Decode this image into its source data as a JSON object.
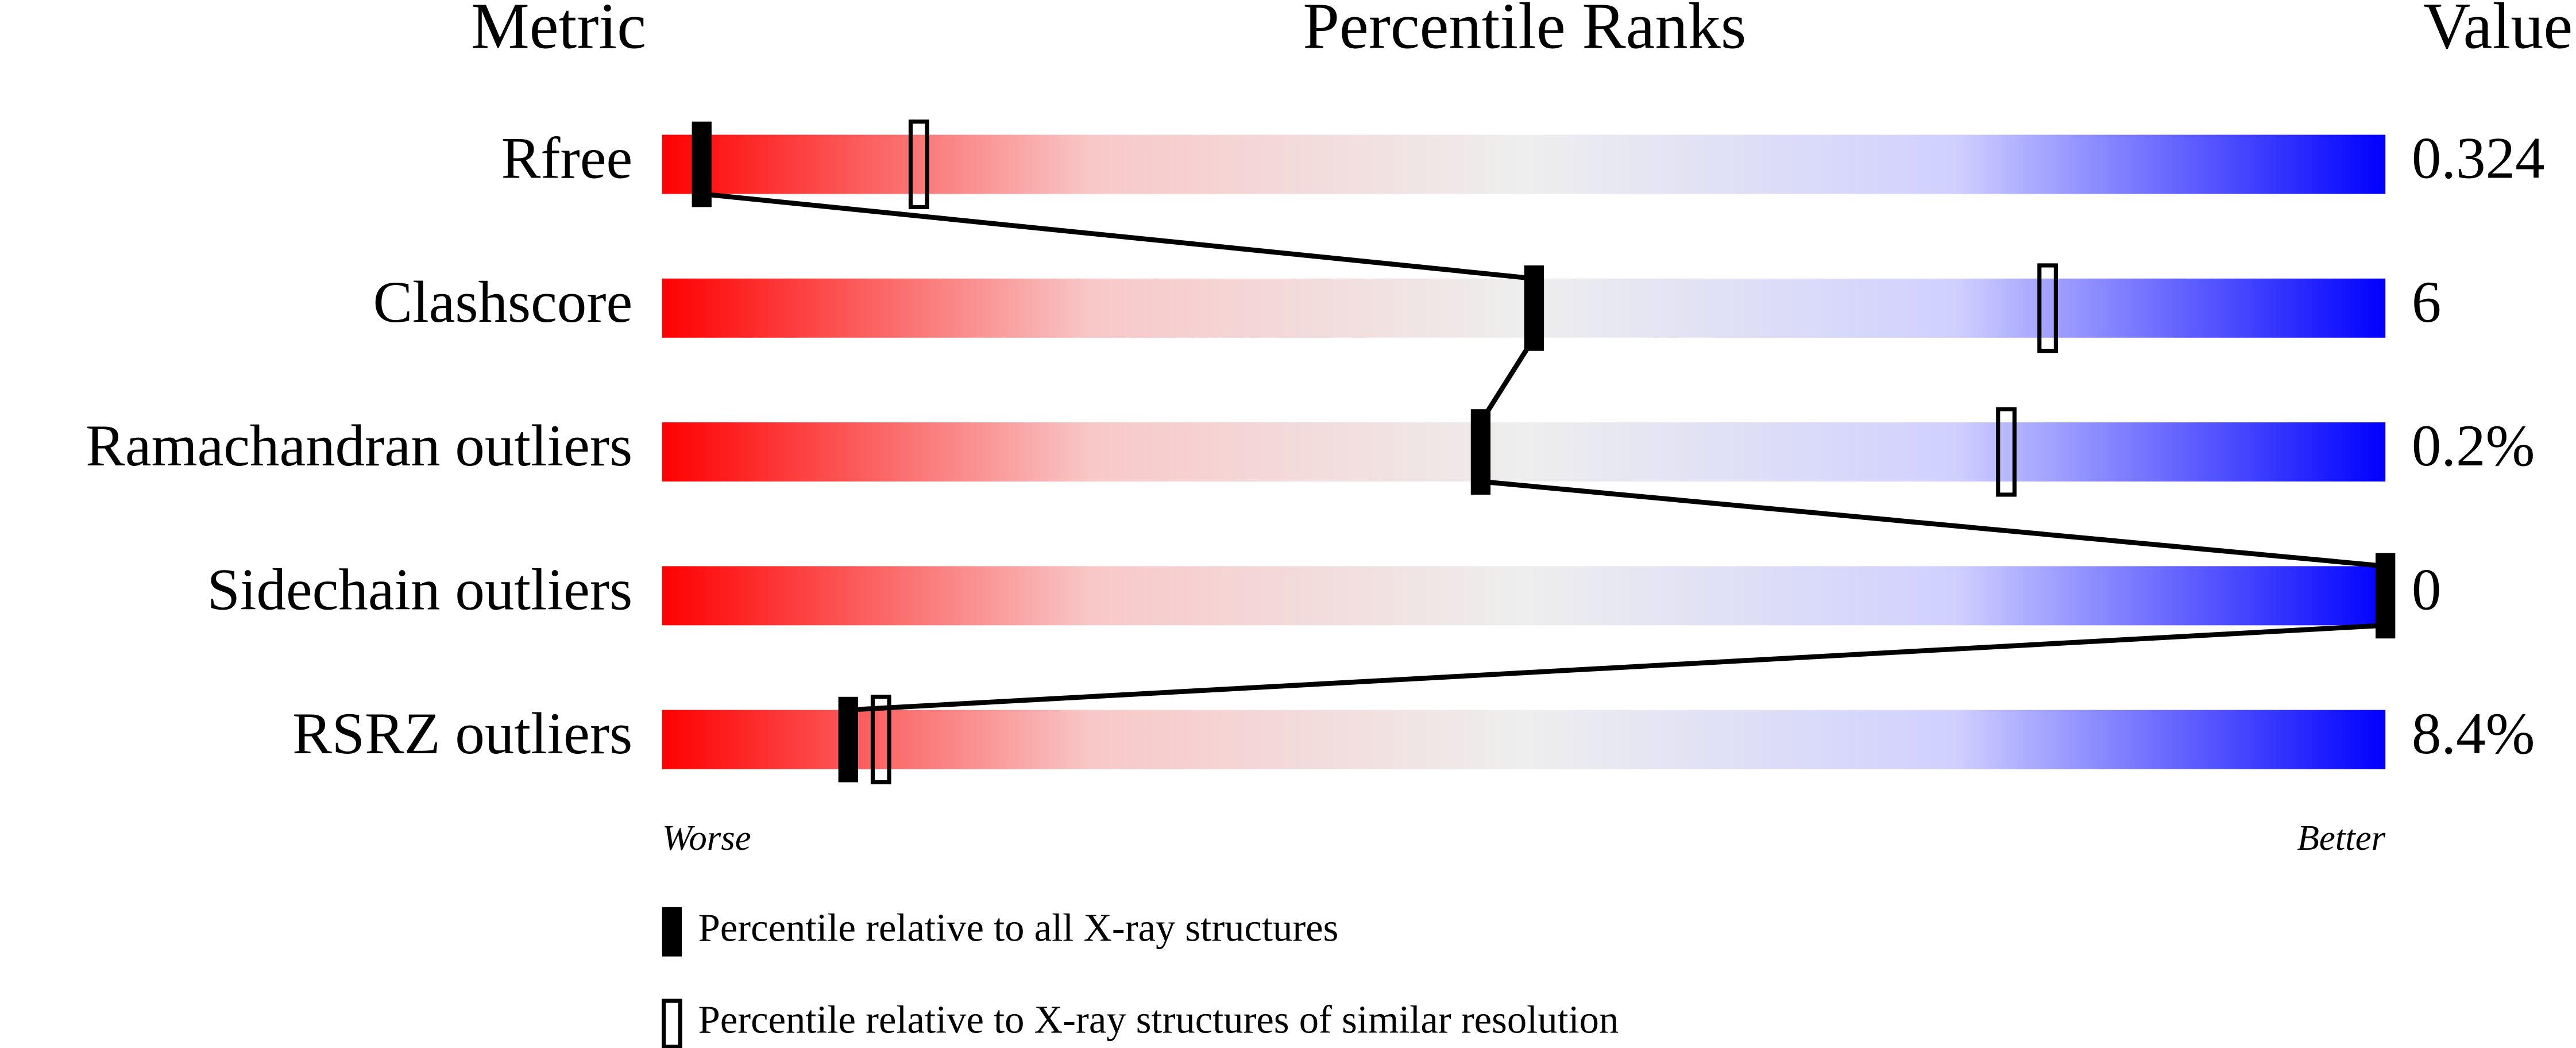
{
  "chart_data": {
    "type": "percentile-slider",
    "headers": [
      "Metric",
      "Percentile Ranks",
      "Value"
    ],
    "categories": [
      "Rfree",
      "Clashscore",
      "Ramachandran outliers",
      "Sidechain outliers",
      "RSRZ outliers"
    ],
    "metric_values": [
      "0.324",
      "6",
      "0.2%",
      "0",
      "8.4%"
    ],
    "series": [
      {
        "name": "Percentile relative to all X-ray structures",
        "style": "filled",
        "color": "#000000",
        "values": [
          2.3,
          50.6,
          47.5,
          100,
          10.8
        ]
      },
      {
        "name": "Percentile relative to X-ray structures of similar resolution",
        "style": "open",
        "color": "#000000",
        "values": [
          14.9,
          80.4,
          78,
          null,
          12.7
        ]
      }
    ],
    "xlim": [
      0,
      100
    ],
    "axis_labels": [
      "Worse",
      "Better"
    ],
    "gradient": [
      "#ff0000",
      "#f8c8c8",
      "#eeeeee",
      "#d0d0ff",
      "#0000ff"
    ]
  }
}
